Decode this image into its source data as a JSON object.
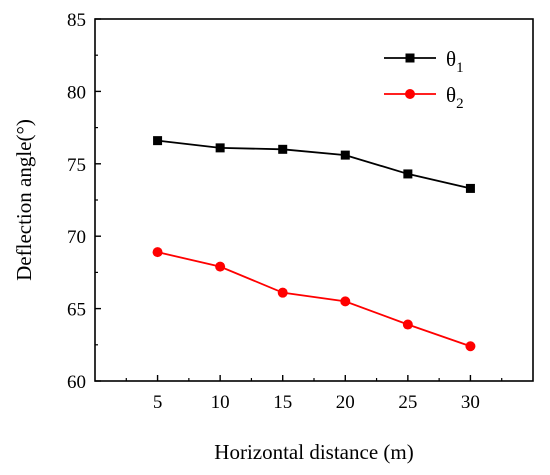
{
  "chart_data": {
    "type": "line",
    "title": "",
    "xlabel": "Horizontal distance (m)",
    "ylabel": "Deflection angle(°)",
    "x": [
      5,
      10,
      15,
      20,
      25,
      30
    ],
    "xticks": [
      5,
      10,
      15,
      20,
      25,
      30
    ],
    "yticks": [
      60,
      65,
      70,
      75,
      80,
      85
    ],
    "xlim": [
      0,
      35
    ],
    "ylim": [
      60,
      85
    ],
    "grid": false,
    "legend_position": "top-right",
    "series": [
      {
        "name": "θ1",
        "name_base": "θ",
        "name_sub": "1",
        "marker": "square",
        "color": "#000000",
        "values": [
          76.6,
          76.1,
          76.0,
          75.6,
          74.3,
          73.3
        ]
      },
      {
        "name": "θ2",
        "name_base": "θ",
        "name_sub": "2",
        "marker": "circle",
        "color": "#ff0000",
        "values": [
          68.9,
          67.9,
          66.1,
          65.5,
          63.9,
          62.4
        ]
      }
    ]
  }
}
